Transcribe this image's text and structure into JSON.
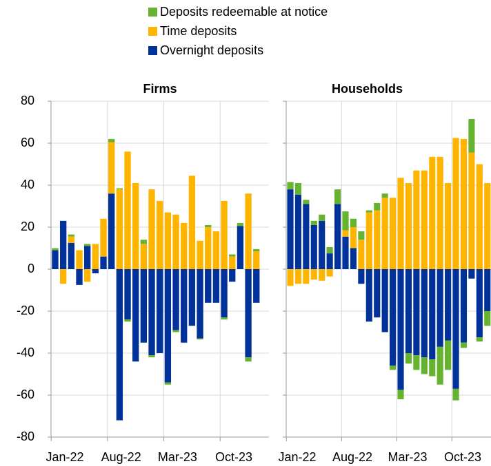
{
  "chart_data": [
    {
      "type": "bar",
      "stacked": true,
      "title": "Firms",
      "categories": [
        "Jan-22",
        null,
        null,
        null,
        null,
        null,
        null,
        "Aug-22",
        null,
        null,
        null,
        null,
        null,
        null,
        "Mar-23",
        null,
        null,
        null,
        null,
        null,
        null,
        "Oct-23",
        null,
        null,
        null,
        null
      ],
      "series": [
        {
          "name": "Overnight deposits",
          "color": "#003299",
          "values": [
            9,
            23,
            12.5,
            -7.5,
            11,
            -2,
            6,
            36,
            -72,
            -24,
            -44,
            -35,
            -41,
            -40,
            -54,
            -29,
            -35,
            -27,
            -33,
            -16,
            -16,
            -23,
            -6,
            20.5,
            -42,
            -16
          ]
        },
        {
          "name": "Time deposits",
          "color": "#ffb400",
          "values": [
            0,
            -7,
            3,
            9,
            -6,
            12,
            18,
            24.5,
            38,
            56,
            41,
            12,
            38,
            32.5,
            27,
            26,
            22,
            44.5,
            13.5,
            20,
            18,
            32.5,
            6,
            0,
            36,
            8.5
          ]
        },
        {
          "name": "Deposits redeemable at notice",
          "color": "#65b32e",
          "values": [
            1,
            0,
            1,
            0,
            1,
            0,
            0,
            1.5,
            0.5,
            -1,
            0,
            2,
            -1,
            0,
            -1,
            -1,
            0,
            0,
            -0.5,
            1,
            0,
            -1,
            1,
            1.5,
            -2,
            1
          ]
        }
      ],
      "ylim": [
        -80,
        80
      ],
      "yticks": [
        -80,
        -60,
        -40,
        -20,
        0,
        20,
        40,
        60,
        80
      ],
      "grid": true,
      "legend": "top"
    },
    {
      "type": "bar",
      "stacked": true,
      "title": "Households",
      "categories": [
        "Jan-22",
        null,
        null,
        null,
        null,
        null,
        null,
        "Aug-22",
        null,
        null,
        null,
        null,
        null,
        null,
        "Mar-23",
        null,
        null,
        null,
        null,
        null,
        null,
        "Oct-23",
        null,
        null,
        null,
        null
      ],
      "series": [
        {
          "color": "#003299",
          "values": [
            38,
            35.5,
            31,
            21,
            23,
            7.5,
            31,
            15.5,
            10,
            -7,
            -25,
            -23,
            -30,
            -46,
            -57.5,
            -40,
            -41,
            -42,
            -43,
            -37,
            -34,
            -57,
            -35,
            -4.5,
            -32.5,
            -20
          ]
        },
        {
          "color": "#ffb400",
          "values": [
            -8,
            -7,
            -7,
            -5,
            -5.5,
            -3.5,
            0,
            3,
            10,
            14,
            27,
            28,
            34,
            34,
            43.5,
            41,
            47,
            47,
            53.5,
            53.5,
            41,
            62.5,
            62,
            55.5,
            50,
            41
          ]
        },
        {
          "color": "#65b32e",
          "values": [
            3.5,
            5.5,
            2,
            2,
            3,
            3,
            7,
            9,
            4,
            4,
            1,
            3.5,
            2,
            -2,
            -4.5,
            -5,
            -7,
            -8,
            -8,
            -18,
            -14,
            -5.5,
            -2.5,
            16,
            -2,
            -7
          ]
        }
      ],
      "ylim": [
        -80,
        80
      ],
      "yticks": [
        -80,
        -60,
        -40,
        -20,
        0,
        20,
        40,
        60,
        80
      ],
      "ytick_labels": false,
      "grid": true
    }
  ]
}
